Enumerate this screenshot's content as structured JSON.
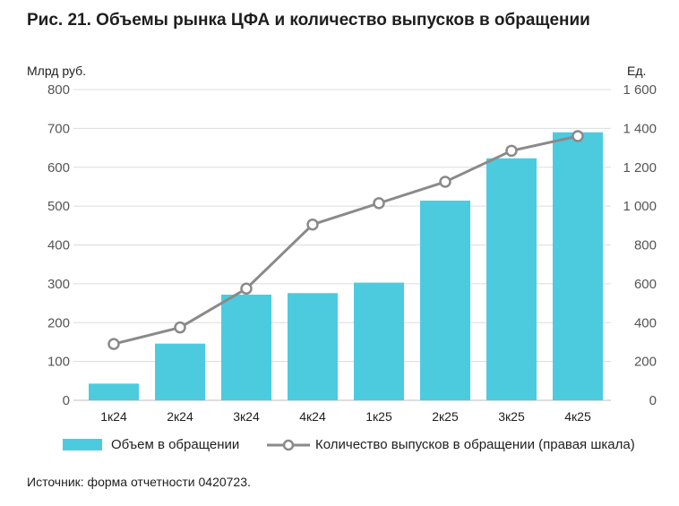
{
  "title": "Рис. 21. Объемы рынка ЦФА и количество выпусков в обращении",
  "left_unit": "Млрд руб.",
  "right_unit": "Ед.",
  "source": "Источник: форма отчетности 0420723.",
  "colors": {
    "bar": "#4ccbdf",
    "line": "#8a8a8a",
    "grid": "#dcdcdc"
  },
  "chart_data": {
    "type": "bar",
    "categories": [
      "1к24",
      "2к24",
      "3к24",
      "4к24",
      "1к25",
      "2к25",
      "3к25",
      "4к25"
    ],
    "series": [
      {
        "name": "Объем в обращении",
        "type": "bar",
        "axis": "left",
        "values": [
          43,
          146,
          272,
          276,
          303,
          514,
          623,
          690
        ]
      },
      {
        "name": "Количество выпусков в обращении (правая шкала)",
        "type": "line",
        "axis": "right",
        "values": [
          290,
          375,
          575,
          905,
          1015,
          1125,
          1285,
          1360
        ]
      }
    ],
    "y_left": {
      "label": "Млрд руб.",
      "lim": [
        0,
        800
      ],
      "ticks": [
        "0",
        "100",
        "200",
        "300",
        "400",
        "500",
        "600",
        "700",
        "800"
      ]
    },
    "y_right": {
      "label": "Ед.",
      "lim": [
        0,
        1600
      ],
      "ticks": [
        "0",
        "200",
        "400",
        "600",
        "800",
        "1 000",
        "1 200",
        "1 400",
        "1 600"
      ]
    },
    "grid": true,
    "legend_position": "bottom"
  }
}
